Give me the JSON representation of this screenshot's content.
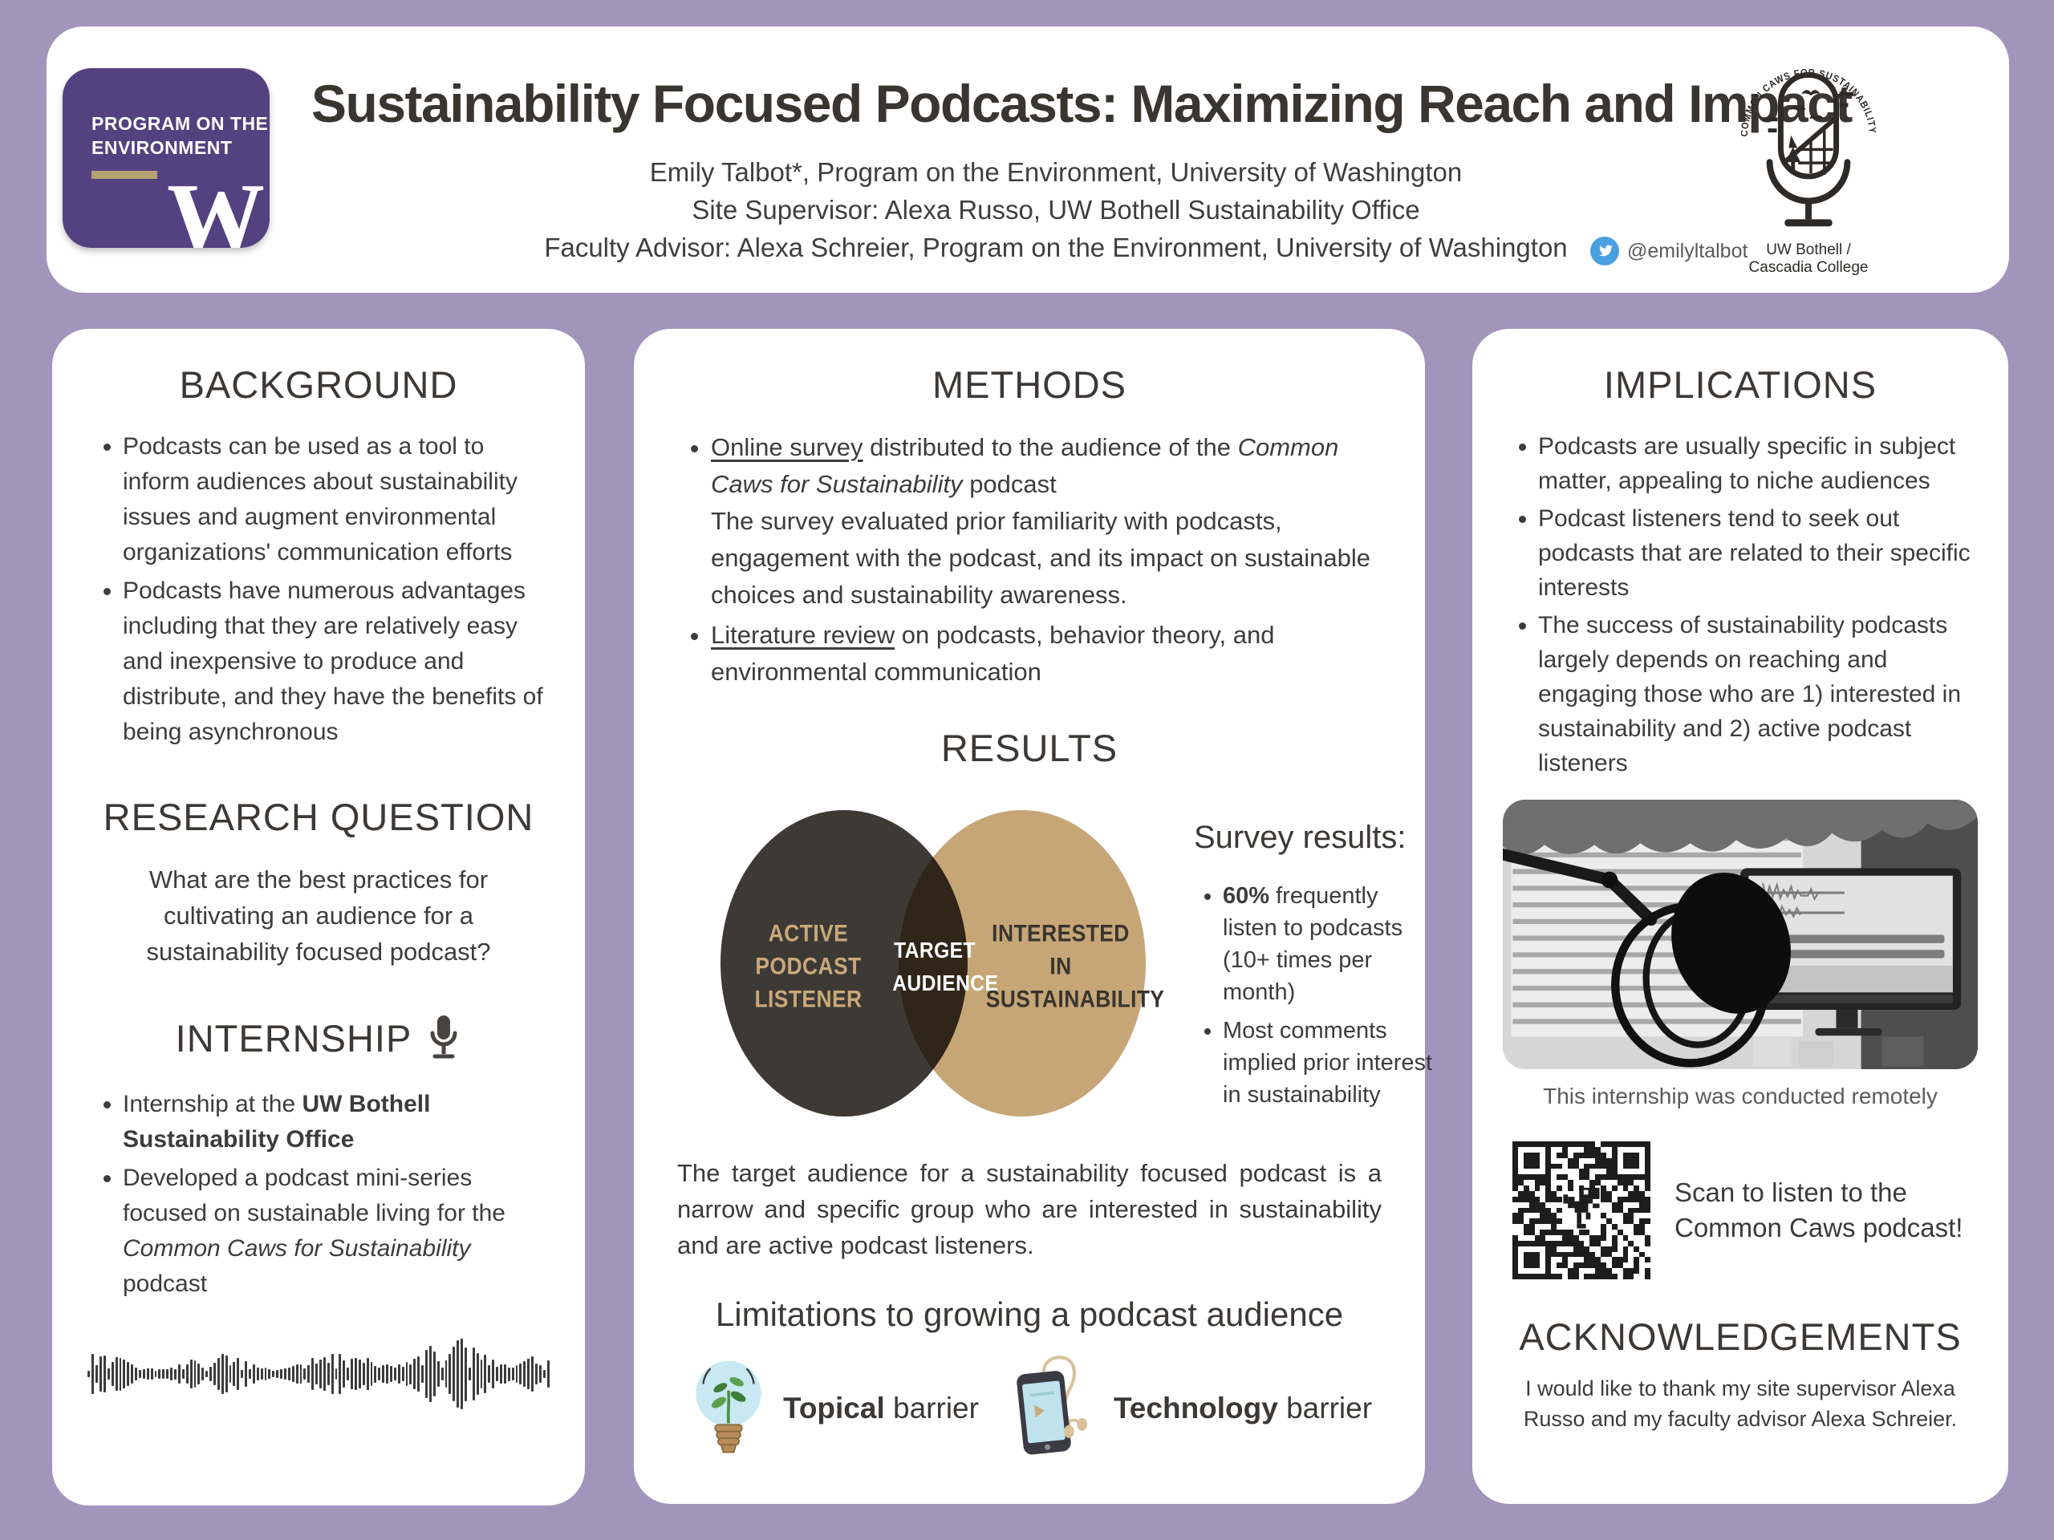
{
  "colors": {
    "page_background": "#a295bc",
    "card_background": "#ffffff",
    "text_dark": "#3b3735",
    "uw_purple": "#544180",
    "logo_gold": "#b5a174",
    "venn_dark": "#3d3935",
    "venn_tan": "#c6a677",
    "venn_tan_label": "#c9a87a",
    "twitter_blue": "#4a9fe0"
  },
  "header": {
    "title": "Sustainability Focused Podcasts: Maximizing Reach and Impact",
    "authors": [
      "Emily Talbot*, Program on the Environment, University of Washington",
      "Site Supervisor: Alexa Russo, UW Bothell Sustainability Office",
      "Faculty Advisor: Alexa Schreier, Program on the Environment, University of Washington"
    ],
    "twitter_handle": "@emilyltalbot",
    "poe_logo": {
      "line1": "PROGRAM ON THE",
      "line2": "ENVIRONMENT",
      "w": "W"
    },
    "podcast_logo": {
      "arc_text": "COMMON CAWS FOR SUSTAINABILITY",
      "caption": "UW Bothell / Cascadia College"
    }
  },
  "background": {
    "heading": "BACKGROUND",
    "bullets": [
      "Podcasts can be used as a tool to inform audiences about sustainability issues and augment environmental organizations' communication efforts",
      "Podcasts have numerous advantages including that they are relatively easy and inexpensive to produce and distribute, and they have the benefits of being asynchronous"
    ]
  },
  "research_question": {
    "heading": "RESEARCH QUESTION",
    "question": "What are the best practices for cultivating an audience for a sustainability focused podcast?"
  },
  "internship": {
    "heading": "INTERNSHIP",
    "b1_pre": "Internship at the ",
    "b1_bold": "UW Bothell Sustainability Office",
    "b2_pre": "Developed a podcast mini-series focused on sustainable living for the ",
    "b2_italic": "Common Caws for Sustainability",
    "b2_post": " podcast"
  },
  "methods": {
    "heading": "METHODS",
    "b1_link": "Online survey",
    "b1_rest1": " distributed to the audience of the ",
    "b1_italic": "Common Caws for Sustainability",
    "b1_rest2": " podcast",
    "b1_para2": "The survey evaluated prior familiarity with podcasts, engagement with the podcast, and its impact on sustainable choices and sustainability awareness.",
    "b2_link": "Literature review",
    "b2_rest": " on podcasts, behavior theory, and environmental communication"
  },
  "results": {
    "heading": "RESULTS",
    "venn": {
      "left_label": "ACTIVE PODCAST LISTENER",
      "center_label": "TARGET AUDIENCE",
      "right_label": "INTERESTED IN SUSTAINABILITY"
    },
    "survey_heading": "Survey results:",
    "bullet1_bold": "60%",
    "bullet1_rest": " frequently listen to podcasts (10+ times per month)",
    "bullet2": "Most comments implied prior interest in sustainability",
    "conclusion": "The target audience for a sustainability focused podcast is a narrow and specific group who are interested in sustainability and are active podcast listeners."
  },
  "limitations": {
    "heading": "Limitations to growing a podcast audience",
    "topical_bold": "Topical",
    "topical_rest": " barrier",
    "technology_bold": "Technology",
    "technology_rest": " barrier"
  },
  "implications": {
    "heading": "IMPLICATIONS",
    "bullets": [
      "Podcasts are usually specific in subject matter, appealing to niche audiences",
      "Podcast listeners tend to seek out podcasts that are related to their specific interests",
      "The success of sustainability podcasts largely depends on reaching and engaging those who are 1) interested in sustainability and 2) active podcast listeners"
    ],
    "photo_caption": "This internship was conducted remotely",
    "qr_caption": "Scan to listen to the Common Caws podcast!"
  },
  "acknowledgements": {
    "heading": "ACKNOWLEDGEMENTS",
    "text": "I would like to thank my site supervisor Alexa Russo and my faculty advisor Alexa Schreier."
  }
}
